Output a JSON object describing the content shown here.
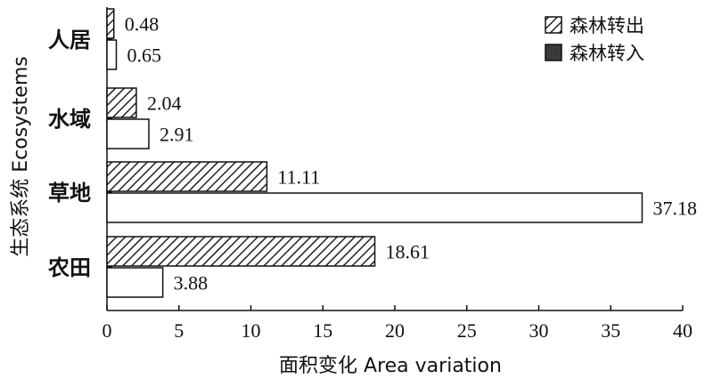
{
  "chart_data": {
    "type": "bar",
    "orientation": "horizontal",
    "categories": [
      "人居",
      "水域",
      "草地",
      "农田"
    ],
    "series": [
      {
        "name": "森林转出",
        "values": [
          0.48,
          2.04,
          11.11,
          18.61
        ],
        "pattern": "hatched"
      },
      {
        "name": "森林转入",
        "values": [
          0.65,
          2.91,
          37.18,
          3.88
        ],
        "pattern": "open"
      }
    ],
    "value_labels": [
      [
        "0.48",
        "2.04",
        "11.11",
        "18.61"
      ],
      [
        "0.65",
        "2.91",
        "37.18",
        "3.88"
      ]
    ],
    "xlabel": "面积变化 Area variation",
    "ylabel": "生态系统 Ecosystems",
    "xlim": [
      0,
      40
    ],
    "xticks": [
      0,
      5,
      10,
      15,
      20,
      25,
      30,
      35,
      40
    ],
    "grid": false,
    "legend_position": "top-right"
  }
}
